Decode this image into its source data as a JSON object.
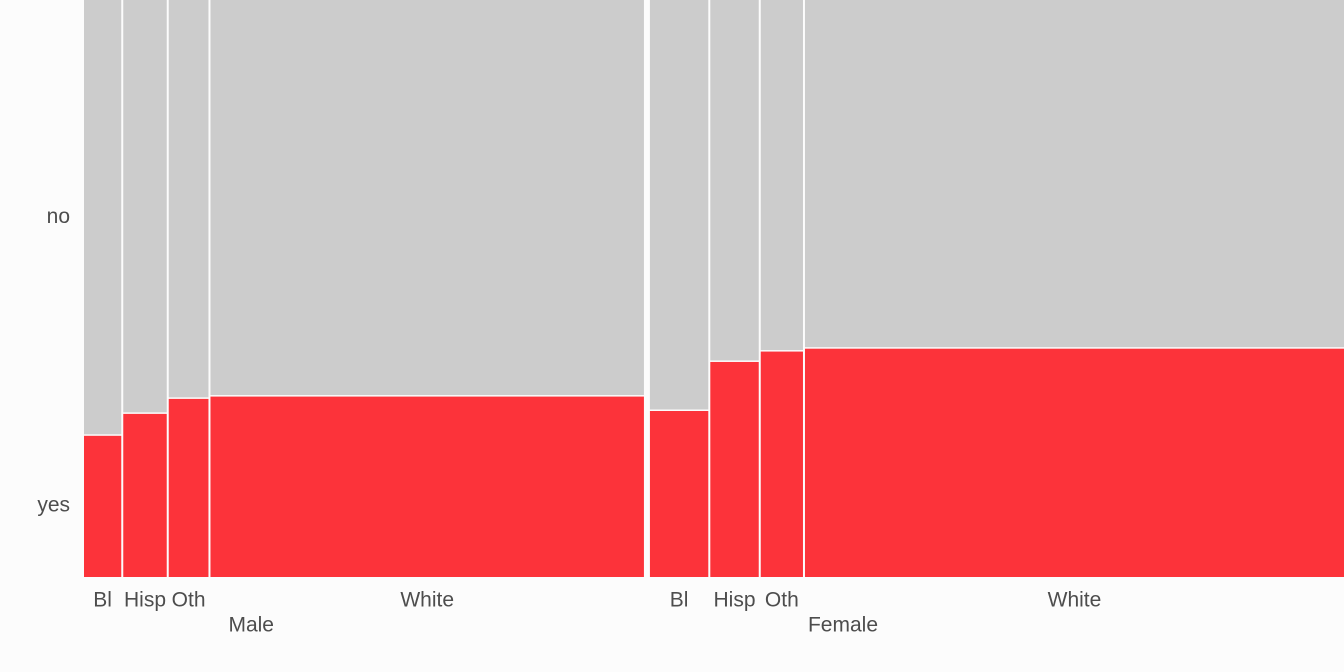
{
  "chart_data": {
    "type": "mosaic",
    "series": [
      {
        "name": "yes",
        "color": "#fc333a"
      },
      {
        "name": "no",
        "color": "#cccccc"
      }
    ],
    "groups": [
      {
        "name": "Male",
        "categories": [
          "Bl",
          "Hisp",
          "Oth",
          "White"
        ],
        "widths": [
          0.03,
          0.035,
          0.032,
          0.349
        ],
        "values": [
          [
            0.246,
            0.284,
            0.31,
            0.314
          ],
          [
            0.754,
            0.716,
            0.69,
            0.686
          ]
        ]
      },
      {
        "name": "Female",
        "categories": [
          "Bl",
          "Hisp",
          "Oth",
          "White"
        ],
        "widths": [
          0.047,
          0.039,
          0.034,
          0.434
        ],
        "values": [
          [
            0.289,
            0.374,
            0.392,
            0.397
          ],
          [
            0.711,
            0.626,
            0.608,
            0.603
          ]
        ]
      }
    ]
  }
}
